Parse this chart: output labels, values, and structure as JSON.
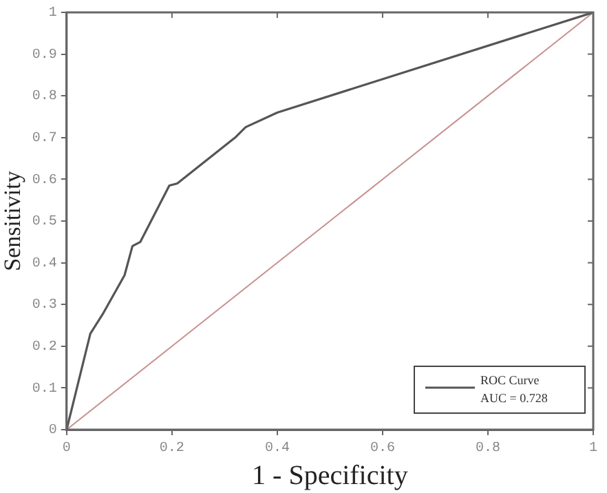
{
  "chart_data": {
    "type": "line",
    "xlabel": "1 - Specificity",
    "ylabel": "Sensitivity",
    "series": [
      {
        "name": "ROC Curve",
        "color": "#555555",
        "x": [
          0,
          0.045,
          0.07,
          0.11,
          0.125,
          0.14,
          0.195,
          0.21,
          0.32,
          0.34,
          0.4,
          1
        ],
        "values": [
          0,
          0.23,
          0.28,
          0.37,
          0.44,
          0.45,
          0.585,
          0.59,
          0.7,
          0.725,
          0.76,
          1
        ]
      },
      {
        "color": "#c89090",
        "x": [
          0,
          1
        ],
        "values": [
          0,
          1
        ]
      }
    ],
    "annotations": [
      "AUC = 0.728"
    ],
    "xlim": [
      0,
      1
    ],
    "ylim": [
      0,
      1
    ],
    "xticks": [
      0,
      0.2,
      0.4,
      0.6,
      0.8,
      1
    ],
    "yticks": [
      0,
      0.1,
      0.2,
      0.3,
      0.4,
      0.5,
      0.6,
      0.7,
      0.8,
      0.9,
      1
    ],
    "grid": false,
    "legend": "bottom right",
    "marker": "none",
    "line_style": "solid"
  }
}
